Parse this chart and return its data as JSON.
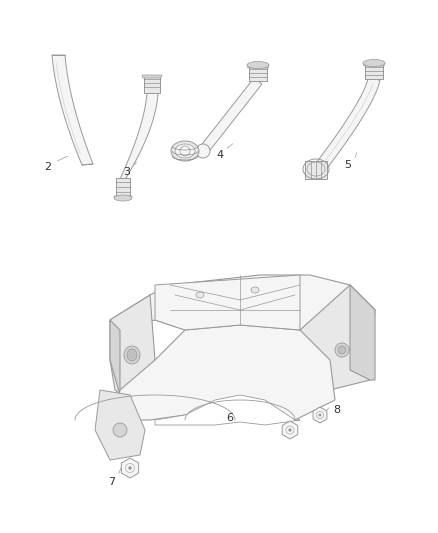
{
  "background_color": "#ffffff",
  "line_color": "#999999",
  "line_color_dark": "#777777",
  "label_color": "#333333",
  "label_fontsize": 8,
  "fill_white": "#ffffff",
  "fill_light": "#f5f5f5",
  "fill_mid": "#e8e8e8",
  "fill_dark": "#d5d5d5",
  "fill_darker": "#c0c0c0"
}
